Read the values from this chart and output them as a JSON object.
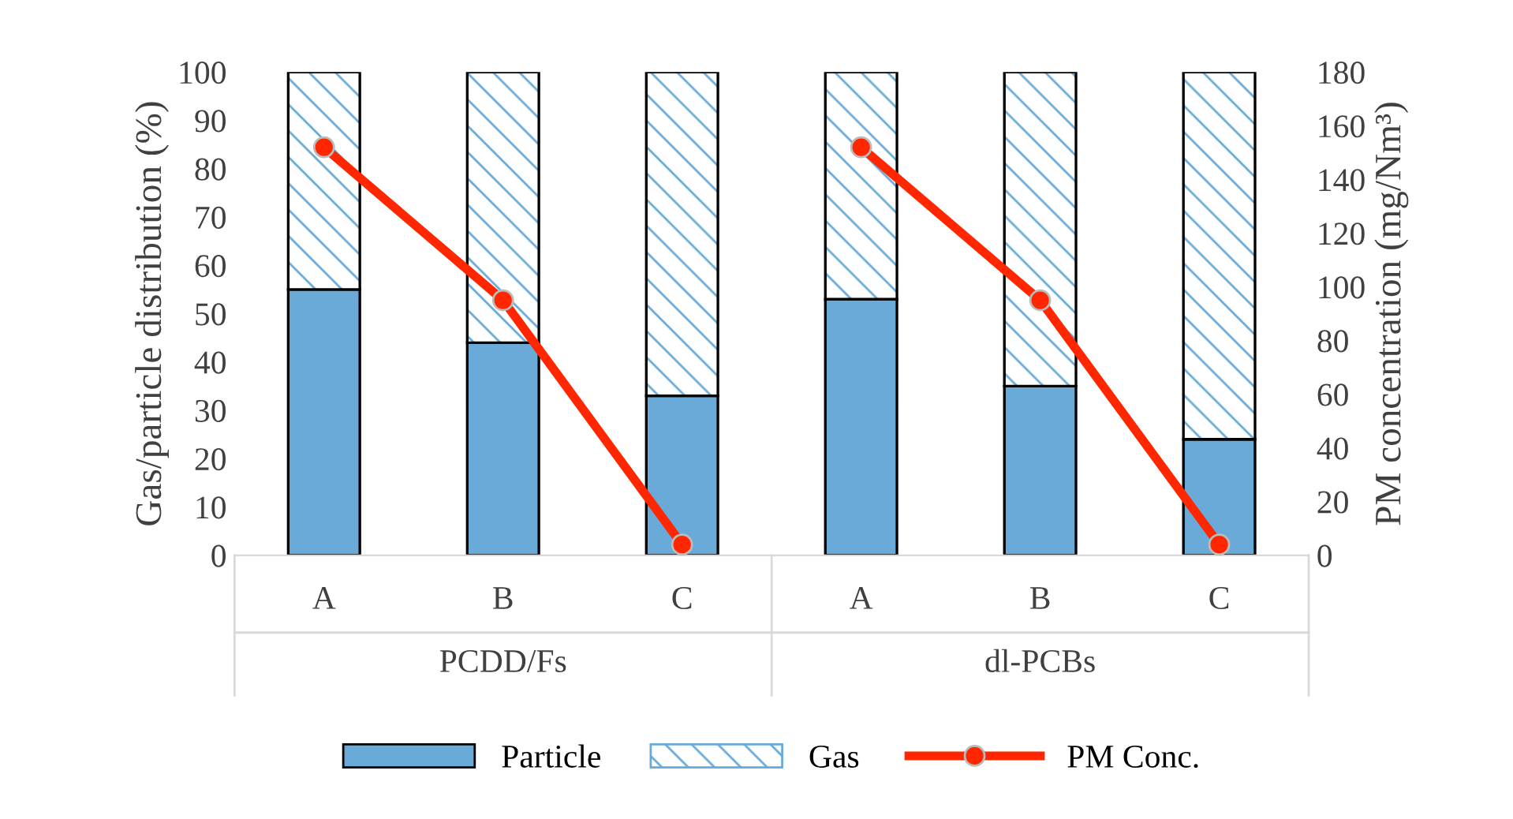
{
  "chart_data": {
    "type": "bar",
    "stacked": true,
    "ylabel": "Gas/particle distribution (%)",
    "y2label": "PM concentration (mg/Nm³)",
    "categories": [
      "A",
      "B",
      "C",
      "A",
      "B",
      "C"
    ],
    "annotations": [
      "PCDD/Fs",
      "dl-PCBs"
    ],
    "series": [
      {
        "name": "Particle",
        "color": "#6aaad9",
        "values": [
          55,
          44,
          33,
          53,
          35,
          24
        ]
      },
      {
        "name": "Gas",
        "color": "#6aaad9",
        "values": [
          45,
          56,
          67,
          47,
          65,
          76
        ]
      },
      {
        "name": "PM Conc.",
        "type": "line",
        "axis": "y2",
        "color": "#ff2600",
        "marker": "circle",
        "values": [
          152,
          95,
          4,
          null,
          null,
          null
        ]
      },
      {
        "type": "line",
        "axis": "y2",
        "color": "#ff2600",
        "marker": "circle",
        "values": [
          null,
          null,
          null,
          152,
          95,
          4
        ]
      }
    ],
    "ylim": [
      0,
      100
    ],
    "yticks": [
      0,
      10,
      20,
      30,
      40,
      50,
      60,
      70,
      80,
      90,
      100
    ],
    "y2lim": [
      0,
      180
    ],
    "y2ticks": [
      0,
      20,
      40,
      60,
      80,
      100,
      120,
      140,
      160,
      180
    ],
    "grid": false,
    "legend": "bottom"
  }
}
